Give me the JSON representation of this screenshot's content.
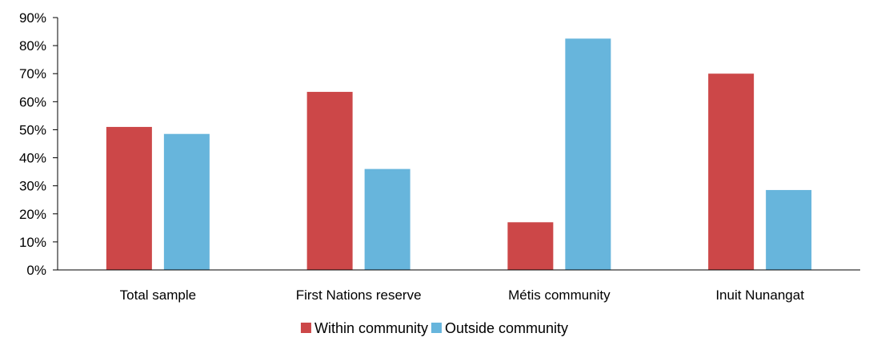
{
  "chart_data": {
    "type": "bar",
    "categories": [
      "Total sample",
      "First Nations reserve",
      "Métis community",
      "Inuit Nunangat"
    ],
    "series": [
      {
        "name": "Within community",
        "values": [
          51,
          63.5,
          17,
          70
        ],
        "color": "#cc4748"
      },
      {
        "name": "Outside community",
        "values": [
          48.5,
          36,
          82.5,
          28.5
        ],
        "color": "#67b5dc"
      }
    ],
    "yticks": [
      "0%",
      "10%",
      "20%",
      "30%",
      "40%",
      "50%",
      "60%",
      "70%",
      "80%",
      "90%"
    ],
    "ylim": [
      0,
      90
    ],
    "grid": false,
    "legend_position": "bottom-center"
  }
}
